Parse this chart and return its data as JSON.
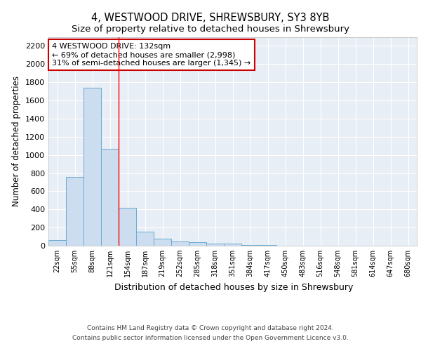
{
  "title1": "4, WESTWOOD DRIVE, SHREWSBURY, SY3 8YB",
  "title2": "Size of property relative to detached houses in Shrewsbury",
  "xlabel": "Distribution of detached houses by size in Shrewsbury",
  "ylabel": "Number of detached properties",
  "footnote1": "Contains HM Land Registry data © Crown copyright and database right 2024.",
  "footnote2": "Contains public sector information licensed under the Open Government Licence v3.0.",
  "annotation_line1": "4 WESTWOOD DRIVE: 132sqm",
  "annotation_line2": "← 69% of detached houses are smaller (2,998)",
  "annotation_line3": "31% of semi-detached houses are larger (1,345) →",
  "bin_labels": [
    "22sqm",
    "55sqm",
    "88sqm",
    "121sqm",
    "154sqm",
    "187sqm",
    "219sqm",
    "252sqm",
    "285sqm",
    "318sqm",
    "351sqm",
    "384sqm",
    "417sqm",
    "450sqm",
    "483sqm",
    "516sqm",
    "548sqm",
    "581sqm",
    "614sqm",
    "647sqm",
    "680sqm"
  ],
  "bar_values": [
    60,
    760,
    1740,
    1070,
    420,
    155,
    80,
    45,
    35,
    25,
    20,
    8,
    5,
    3,
    2,
    2,
    1,
    1,
    1,
    1,
    0
  ],
  "bar_color": "#ccddf0",
  "bar_edge_color": "#6aaad4",
  "red_line_x": 3.5,
  "ylim": [
    0,
    2300
  ],
  "yticks": [
    0,
    200,
    400,
    600,
    800,
    1000,
    1200,
    1400,
    1600,
    1800,
    2000,
    2200
  ],
  "background_color": "#e8eef5",
  "grid_color": "#ffffff",
  "title1_fontsize": 10.5,
  "title2_fontsize": 9.5,
  "annotation_box_color": "#ffffff",
  "annotation_box_edge": "#cc0000"
}
